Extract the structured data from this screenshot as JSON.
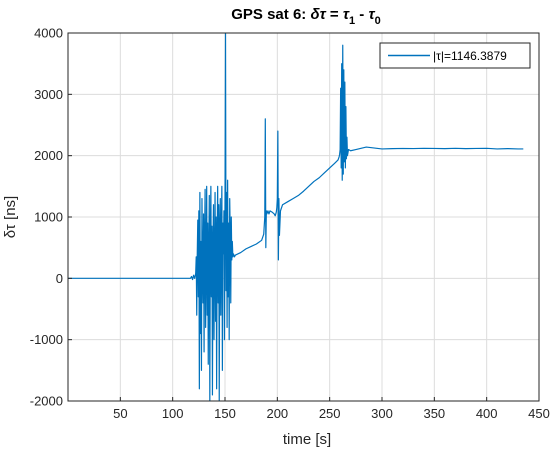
{
  "chart_data": {
    "type": "line",
    "title": "GPS sat 6: δτ = τ1 - τ0",
    "title_parts": {
      "prefix": "GPS sat 6: ",
      "delta_tau": "δτ",
      "equals": " = ",
      "tau": "τ",
      "sub1": "1",
      "minus": " - ",
      "sub0": "0"
    },
    "xlabel": "time [s]",
    "ylabel": "δτ [ns]",
    "xlim": [
      0,
      450
    ],
    "ylim": [
      -2000,
      4000
    ],
    "xticks": [
      50,
      100,
      150,
      200,
      250,
      300,
      350,
      400,
      450
    ],
    "yticks": [
      -2000,
      -1000,
      0,
      1000,
      2000,
      3000,
      4000
    ],
    "grid": true,
    "legend": {
      "position": "top-right",
      "entries": [
        "|τ|=1146.3879"
      ]
    },
    "line_color": "#0072BD",
    "series": [
      {
        "name": "|τ|=1146.3879",
        "x": [
          0,
          117,
          118,
          119,
          120,
          121,
          122,
          122.5,
          123,
          123.5,
          124,
          124.5,
          125,
          125.5,
          126,
          126.5,
          127,
          127.5,
          128,
          128.5,
          129,
          129.5,
          130,
          130.5,
          131,
          131.5,
          132,
          132.5,
          133,
          133.5,
          134,
          134.5,
          135,
          135.5,
          136,
          136.5,
          137,
          137.5,
          138,
          138.5,
          139,
          139.5,
          140,
          140.5,
          141,
          141.5,
          142,
          142.5,
          143,
          143.5,
          144,
          144.5,
          145,
          145.5,
          146,
          146.5,
          147,
          147.5,
          148,
          148.5,
          149,
          149.5,
          150,
          150.5,
          151,
          151.5,
          152,
          152.5,
          153,
          153.5,
          154,
          154.5,
          155,
          155.5,
          156,
          156.5,
          157,
          157.5,
          158,
          158.5,
          159,
          160,
          165,
          170,
          175,
          180,
          185,
          187,
          188,
          188.5,
          189,
          189.5,
          190,
          191,
          192,
          193,
          195,
          197,
          198,
          199,
          199.5,
          200,
          200.5,
          201,
          201.5,
          202,
          203,
          205,
          210,
          215,
          220,
          225,
          230,
          235,
          240,
          245,
          250,
          255,
          258,
          259,
          259.5,
          260,
          260.5,
          261,
          261.5,
          262,
          262.5,
          263,
          263.5,
          264,
          264.5,
          265,
          265.5,
          266,
          266.5,
          267,
          268,
          270,
          275,
          280,
          285,
          290,
          295,
          300,
          310,
          320,
          330,
          340,
          350,
          360,
          370,
          380,
          390,
          400,
          410,
          420,
          430,
          435
        ],
        "y": [
          0,
          0,
          30,
          -20,
          50,
          0,
          80,
          350,
          -600,
          400,
          950,
          -300,
          1100,
          -1800,
          1400,
          -900,
          600,
          -1500,
          1300,
          200,
          -400,
          1050,
          -1200,
          600,
          1450,
          -800,
          200,
          1500,
          -600,
          900,
          -1400,
          400,
          1350,
          -2000,
          700,
          1500,
          -300,
          850,
          -1900,
          500,
          1200,
          -1000,
          300,
          1400,
          -700,
          1000,
          -1800,
          600,
          1500,
          -400,
          1200,
          -2000,
          800,
          1300,
          -600,
          700,
          1500,
          -1500,
          900,
          400,
          1100,
          -1000,
          1300,
          4000,
          -200,
          1400,
          -800,
          1600,
          -300,
          900,
          -1000,
          1300,
          700,
          -400,
          1000,
          300,
          600,
          350,
          400,
          380,
          350,
          380,
          420,
          480,
          520,
          560,
          620,
          720,
          1000,
          2600,
          500,
          1100,
          1050,
          1100,
          1050,
          1100,
          1080,
          1050,
          1020,
          1080,
          1150,
          1300,
          2400,
          300,
          1300,
          700,
          1100,
          1200,
          1250,
          1300,
          1350,
          1420,
          1500,
          1580,
          1640,
          1720,
          1800,
          1880,
          1930,
          1980,
          2020,
          2100,
          3100,
          1800,
          3500,
          1600,
          3800,
          1700,
          3400,
          1900,
          3200,
          1800,
          2800,
          1950,
          2300,
          2000,
          2100,
          2080,
          2100,
          2120,
          2140,
          2130,
          2120,
          2110,
          2115,
          2118,
          2116,
          2120,
          2118,
          2115,
          2120,
          2115,
          2118,
          2120,
          2110,
          2115,
          2110,
          2110
        ]
      }
    ]
  }
}
